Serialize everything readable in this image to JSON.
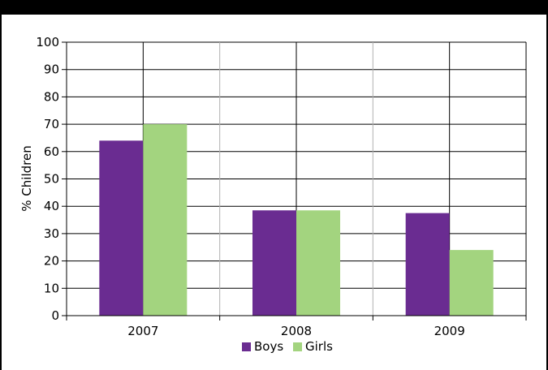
{
  "chart_data": {
    "type": "bar",
    "title": "",
    "xlabel": "",
    "ylabel": "% Children",
    "ylim": [
      0,
      100
    ],
    "yticks": [
      "0",
      "10",
      "20",
      "30",
      "40",
      "50",
      "60",
      "70",
      "80",
      "90",
      "100"
    ],
    "categories": [
      "2007",
      "2008",
      "2009"
    ],
    "series": [
      {
        "name": "Boys",
        "values": [
          64,
          38.5,
          37.5
        ],
        "color": "#6a2c91"
      },
      {
        "name": "Girls",
        "values": [
          70,
          38.5,
          24
        ],
        "color": "#a3d47f"
      }
    ],
    "grid": true,
    "legend_position": "bottom"
  },
  "colors": {
    "frame_bar": "#000000",
    "grid_horizontal": "#000000",
    "grid_vertical": "#b0b0b0"
  }
}
